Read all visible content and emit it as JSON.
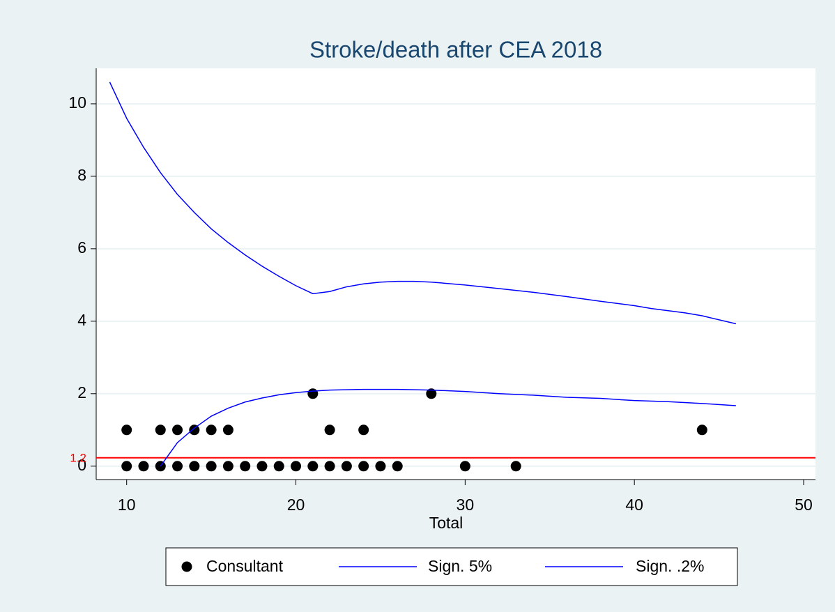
{
  "chart_data": {
    "type": "scatter",
    "title": "Stroke/death after CEA 2018",
    "xlabel": "Total",
    "xlim": [
      8.2,
      50.7
    ],
    "ylim": [
      -0.37,
      10.98
    ],
    "xticks": [
      10,
      20,
      30,
      40,
      50
    ],
    "yticks": [
      0,
      2,
      4,
      6,
      8,
      10
    ],
    "grid": true,
    "legend": "bottom",
    "reference_line": {
      "value": 0.23,
      "label": "1.2",
      "color": "#ff0000"
    },
    "series": [
      {
        "name": "Consultant",
        "type": "scatter",
        "color": "#000000",
        "x": [
          10,
          11,
          12,
          13,
          14,
          15,
          16,
          17,
          18,
          19,
          20,
          21,
          22,
          23,
          24,
          25,
          26,
          30,
          33,
          10,
          12,
          13,
          14,
          15,
          16,
          22,
          24,
          44,
          21,
          28
        ],
        "values": [
          0,
          0,
          0,
          0,
          0,
          0,
          0,
          0,
          0,
          0,
          0,
          0,
          0,
          0,
          0,
          0,
          0,
          0,
          0,
          1,
          1,
          1,
          1,
          1,
          1,
          1,
          1,
          1,
          2,
          2
        ]
      },
      {
        "name": "Sign. 5%",
        "type": "line",
        "color": "#0000ff",
        "x": [
          12,
          13,
          14,
          15,
          16,
          17,
          18,
          19,
          20,
          21,
          22,
          24,
          26,
          28,
          30,
          32,
          34,
          36,
          38,
          40,
          42,
          44,
          46
        ],
        "values": [
          0,
          0.65,
          1.05,
          1.38,
          1.6,
          1.77,
          1.88,
          1.97,
          2.03,
          2.07,
          2.1,
          2.12,
          2.12,
          2.1,
          2.06,
          2.0,
          1.96,
          1.9,
          1.87,
          1.81,
          1.78,
          1.73,
          1.67
        ]
      },
      {
        "name": "Sign. .2%",
        "type": "line",
        "color": "#0000ff",
        "x": [
          9,
          10,
          11,
          12,
          13,
          14,
          15,
          16,
          17,
          18,
          19,
          20,
          21,
          22,
          23,
          24,
          25,
          26,
          27,
          28,
          30,
          32,
          34,
          36,
          38,
          40,
          41,
          43,
          44,
          46
        ],
        "values": [
          10.6,
          9.6,
          8.8,
          8.1,
          7.5,
          7.0,
          6.55,
          6.17,
          5.83,
          5.52,
          5.24,
          4.98,
          4.76,
          4.82,
          4.95,
          5.03,
          5.08,
          5.1,
          5.1,
          5.08,
          5.0,
          4.9,
          4.8,
          4.68,
          4.55,
          4.43,
          4.35,
          4.23,
          4.15,
          3.93
        ]
      }
    ]
  }
}
